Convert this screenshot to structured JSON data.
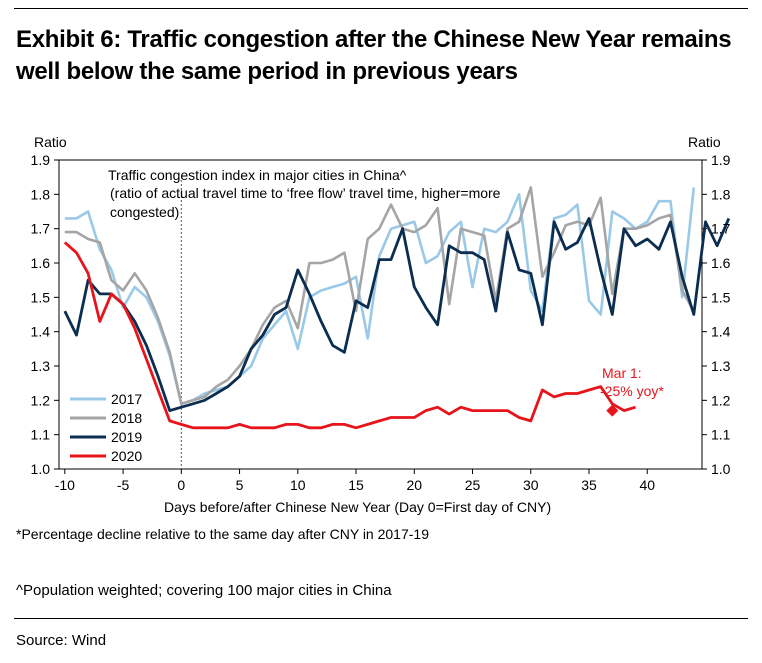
{
  "header": {
    "title_line1": "Exhibit 6: Traffic congestion after the Chinese New Year remains",
    "title_line2": "well below the same period in previous years"
  },
  "footnotes": {
    "note1": "*Percentage decline relative to the same day after CNY in 2017-19",
    "note2": "^Population weighted; covering 100 major cities in China"
  },
  "source": "Source: Wind",
  "chart_data": {
    "type": "line",
    "annotation_title": "Traffic congestion index in major cities in China^",
    "annotation_sub1": "(ratio of actual travel time to ‘free flow’ travel time, higher=more",
    "annotation_sub2": "congested)",
    "callout_line1": "Mar 1:",
    "callout_line2": "-25% yoy*",
    "callout_color": "#e8141b",
    "xlabel": "Days before/after Chinese New Year (Day 0=First day of CNY)",
    "ylabel_left": "Ratio",
    "ylabel_right": "Ratio",
    "xlim": [
      -10.5,
      44.7
    ],
    "ylim": [
      1.0,
      1.9
    ],
    "x_ticks": [
      -10,
      -5,
      0,
      5,
      10,
      15,
      20,
      25,
      30,
      35,
      40
    ],
    "x_tick_labels": [
      "-10",
      "-5",
      "0",
      "5",
      "10",
      "15",
      "20",
      "25",
      "30",
      "35",
      "40"
    ],
    "y_ticks": [
      1.0,
      1.1,
      1.2,
      1.3,
      1.4,
      1.5,
      1.6,
      1.7,
      1.8,
      1.9
    ],
    "y_tick_labels": [
      "1.0",
      "1.1",
      "1.2",
      "1.3",
      "1.4",
      "1.5",
      "1.6",
      "1.7",
      "1.8",
      "1.9"
    ],
    "zero_line_x": 0,
    "legend_position": "lower-left",
    "series": [
      {
        "name": "2017",
        "color": "#9ac9e8",
        "x_start": -10,
        "values": [
          1.73,
          1.73,
          1.75,
          1.64,
          1.58,
          1.47,
          1.53,
          1.5,
          1.43,
          1.33,
          1.19,
          1.2,
          1.22,
          1.23,
          1.24,
          1.27,
          1.3,
          1.38,
          1.42,
          1.46,
          1.35,
          1.5,
          1.52,
          1.53,
          1.54,
          1.56,
          1.38,
          1.62,
          1.7,
          1.71,
          1.72,
          1.6,
          1.62,
          1.69,
          1.72,
          1.53,
          1.7,
          1.69,
          1.72,
          1.8,
          1.52,
          1.46,
          1.73,
          1.74,
          1.77,
          1.49,
          1.45,
          1.75,
          1.73,
          1.7,
          1.72,
          1.78,
          1.78,
          1.5,
          1.82
        ]
      },
      {
        "name": "2018",
        "color": "#a5a5a5",
        "x_start": -10,
        "values": [
          1.69,
          1.69,
          1.67,
          1.66,
          1.55,
          1.52,
          1.57,
          1.52,
          1.44,
          1.34,
          1.19,
          1.2,
          1.21,
          1.24,
          1.26,
          1.3,
          1.35,
          1.42,
          1.47,
          1.49,
          1.41,
          1.6,
          1.6,
          1.61,
          1.63,
          1.46,
          1.67,
          1.7,
          1.77,
          1.7,
          1.69,
          1.71,
          1.76,
          1.48,
          1.7,
          1.69,
          1.68,
          1.49,
          1.7,
          1.72,
          1.82,
          1.56,
          1.63,
          1.71,
          1.72,
          1.71,
          1.79,
          1.51,
          1.7,
          1.7,
          1.71,
          1.73,
          1.74,
          1.52,
          1.46
        ]
      },
      {
        "name": "2019",
        "color": "#0b2d4f",
        "x_start": -10,
        "values": [
          1.46,
          1.39,
          1.55,
          1.51,
          1.51,
          1.48,
          1.43,
          1.36,
          1.27,
          1.17,
          1.18,
          1.19,
          1.2,
          1.22,
          1.24,
          1.27,
          1.35,
          1.39,
          1.45,
          1.47,
          1.58,
          1.51,
          1.43,
          1.36,
          1.34,
          1.49,
          1.47,
          1.61,
          1.61,
          1.7,
          1.53,
          1.47,
          1.42,
          1.65,
          1.63,
          1.63,
          1.61,
          1.46,
          1.69,
          1.58,
          1.57,
          1.42,
          1.72,
          1.64,
          1.66,
          1.73,
          1.58,
          1.45,
          1.7,
          1.65,
          1.67,
          1.64,
          1.72,
          1.56,
          1.45,
          1.72,
          1.65,
          1.73
        ]
      },
      {
        "name": "2020",
        "color": "#e8141b",
        "x_start": -10,
        "values": [
          1.66,
          1.63,
          1.57,
          1.43,
          1.51,
          1.48,
          1.41,
          1.32,
          1.23,
          1.14,
          1.13,
          1.12,
          1.12,
          1.12,
          1.12,
          1.13,
          1.12,
          1.12,
          1.12,
          1.13,
          1.13,
          1.12,
          1.12,
          1.13,
          1.13,
          1.12,
          1.13,
          1.14,
          1.15,
          1.15,
          1.15,
          1.17,
          1.18,
          1.16,
          1.18,
          1.17,
          1.17,
          1.17,
          1.17,
          1.15,
          1.14,
          1.23,
          1.21,
          1.22,
          1.22,
          1.23,
          1.24,
          1.19,
          1.17,
          1.18
        ]
      }
    ],
    "endpoint_marker": {
      "series": "2020",
      "x": 37,
      "y": 1.17,
      "shape": "diamond"
    }
  }
}
